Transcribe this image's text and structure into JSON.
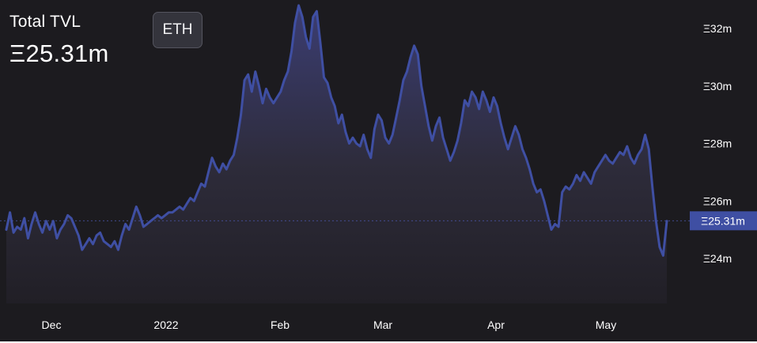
{
  "header": {
    "title": "Total TVL",
    "value": "Ξ25.31m"
  },
  "toggle": {
    "label": "ETH"
  },
  "colors": {
    "background": "#1c1b1f",
    "line": "#3f4fa3",
    "badge": "#3f4fa3",
    "text": "#ffffff"
  },
  "chart_data": {
    "type": "area",
    "xlabels": [
      "Dec",
      "2022",
      "Feb",
      "Mar",
      "Apr",
      "May"
    ],
    "y_ticks": [
      {
        "value": 24,
        "label": "Ξ24m"
      },
      {
        "value": 26,
        "label": "Ξ26m"
      },
      {
        "value": 28,
        "label": "Ξ28m"
      },
      {
        "value": 30,
        "label": "Ξ30m"
      },
      {
        "value": 32,
        "label": "Ξ32m"
      }
    ],
    "current": {
      "value": 25.31,
      "label": "Ξ25.31m"
    },
    "ylim": [
      21.3,
      32.9
    ],
    "series": [
      {
        "values": [
          25.0,
          25.6,
          24.9,
          25.1,
          25.0,
          25.4,
          24.7,
          25.2,
          25.6,
          25.2,
          24.9,
          25.3,
          25.0,
          25.3,
          24.7,
          25.0,
          25.2,
          25.5,
          25.4,
          25.1,
          24.8,
          24.3,
          24.5,
          24.7,
          24.5,
          24.8,
          24.9,
          24.6,
          24.5,
          24.4,
          24.6,
          24.3,
          24.8,
          25.2,
          25.0,
          25.4,
          25.8,
          25.5,
          25.1,
          25.2,
          25.3,
          25.4,
          25.5,
          25.4,
          25.5,
          25.6,
          25.6,
          25.7,
          25.8,
          25.7,
          25.9,
          26.1,
          26.0,
          26.3,
          26.6,
          26.5,
          27.0,
          27.5,
          27.2,
          27.0,
          27.3,
          27.1,
          27.4,
          27.6,
          28.2,
          29.0,
          30.2,
          30.4,
          29.8,
          30.5,
          30.0,
          29.4,
          29.9,
          29.6,
          29.4,
          29.6,
          29.8,
          30.2,
          30.5,
          31.2,
          32.2,
          32.8,
          32.4,
          31.7,
          31.3,
          32.4,
          32.6,
          31.5,
          30.3,
          30.1,
          29.6,
          29.3,
          28.7,
          29.0,
          28.4,
          28.0,
          28.2,
          28.0,
          27.9,
          28.3,
          27.8,
          27.5,
          28.5,
          29.0,
          28.8,
          28.2,
          28.0,
          28.3,
          28.9,
          29.5,
          30.2,
          30.5,
          31.0,
          31.4,
          31.1,
          30.0,
          29.3,
          28.6,
          28.1,
          28.6,
          28.9,
          28.2,
          27.8,
          27.4,
          27.7,
          28.1,
          28.7,
          29.5,
          29.3,
          29.8,
          29.6,
          29.2,
          29.8,
          29.5,
          29.1,
          29.6,
          29.3,
          28.7,
          28.2,
          27.8,
          28.2,
          28.6,
          28.3,
          27.8,
          27.5,
          27.1,
          26.6,
          26.3,
          26.4,
          26.0,
          25.5,
          25.0,
          25.2,
          25.1,
          26.3,
          26.5,
          26.4,
          26.6,
          26.9,
          26.7,
          27.0,
          26.8,
          26.6,
          27.0,
          27.2,
          27.4,
          27.6,
          27.4,
          27.3,
          27.5,
          27.7,
          27.6,
          27.9,
          27.5,
          27.3,
          27.6,
          27.8,
          28.3,
          27.8,
          26.5,
          25.3,
          24.4,
          24.1,
          25.3
        ]
      }
    ]
  }
}
